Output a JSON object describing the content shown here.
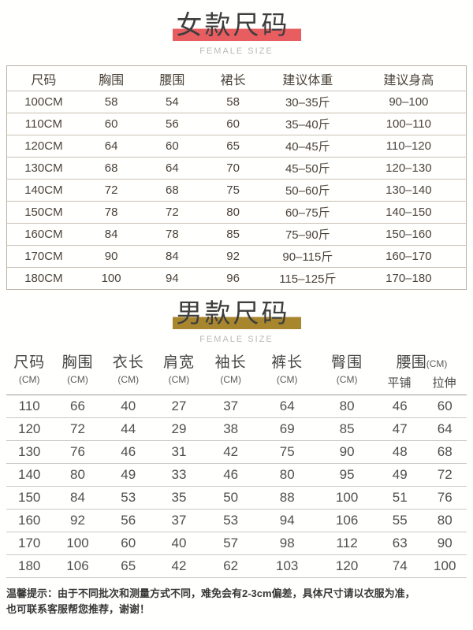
{
  "colors": {
    "female_accent": "#e75d60",
    "male_accent": "#a8862e",
    "title_text": "#3e3e3e",
    "subtitle_text": "#b9b9b9",
    "female_table_text": "#4a4238",
    "female_table_border": "#b8b0a0",
    "male_table_text": "#4f4f4f",
    "male_table_line": "#c9c9c9",
    "note_text": "#383838"
  },
  "female": {
    "title": "女款尺码",
    "subtitle": "FEMALE SIZE",
    "headers": [
      "尺码",
      "胸围",
      "腰围",
      "裙长",
      "建议体重",
      "建议身高"
    ],
    "rows": [
      [
        "100CM",
        "58",
        "54",
        "58",
        "30–35斤",
        "90–100"
      ],
      [
        "110CM",
        "60",
        "56",
        "60",
        "35–40斤",
        "100–110"
      ],
      [
        "120CM",
        "64",
        "60",
        "65",
        "40–45斤",
        "110–120"
      ],
      [
        "130CM",
        "68",
        "64",
        "70",
        "45–50斤",
        "120–130"
      ],
      [
        "140CM",
        "72",
        "68",
        "75",
        "50–60斤",
        "130–140"
      ],
      [
        "150CM",
        "78",
        "72",
        "80",
        "60–75斤",
        "140–150"
      ],
      [
        "160CM",
        "84",
        "78",
        "85",
        "75–90斤",
        "150–160"
      ],
      [
        "170CM",
        "90",
        "84",
        "92",
        "90–115斤",
        "160–170"
      ],
      [
        "180CM",
        "100",
        "94",
        "96",
        "115–125斤",
        "170–180"
      ]
    ]
  },
  "male": {
    "title": "男款尺码",
    "subtitle": "FEMALE SIZE",
    "headers": [
      {
        "label": "尺码",
        "unit": "(CM)"
      },
      {
        "label": "胸围",
        "unit": "(CM)"
      },
      {
        "label": "衣长",
        "unit": "(CM)"
      },
      {
        "label": "肩宽",
        "unit": "(CM)"
      },
      {
        "label": "袖长",
        "unit": "(CM)"
      },
      {
        "label": "裤长",
        "unit": "(CM)"
      },
      {
        "label": "臀围",
        "unit": "(CM)"
      }
    ],
    "waist": {
      "label": "腰围",
      "unit": "(CM)",
      "sub": [
        "平铺",
        "拉伸"
      ]
    },
    "rows": [
      [
        "110",
        "66",
        "40",
        "27",
        "37",
        "64",
        "80",
        "46",
        "60"
      ],
      [
        "120",
        "72",
        "44",
        "29",
        "38",
        "69",
        "85",
        "47",
        "64"
      ],
      [
        "130",
        "76",
        "46",
        "31",
        "42",
        "75",
        "90",
        "48",
        "68"
      ],
      [
        "140",
        "80",
        "49",
        "33",
        "46",
        "80",
        "95",
        "49",
        "72"
      ],
      [
        "150",
        "84",
        "53",
        "35",
        "50",
        "88",
        "100",
        "51",
        "76"
      ],
      [
        "160",
        "92",
        "56",
        "37",
        "53",
        "94",
        "106",
        "55",
        "80"
      ],
      [
        "170",
        "100",
        "60",
        "40",
        "57",
        "98",
        "112",
        "63",
        "90"
      ],
      [
        "180",
        "106",
        "65",
        "42",
        "62",
        "103",
        "120",
        "74",
        "100"
      ]
    ]
  },
  "note": {
    "line1": "温馨提示：由于不同批次和测量方式不同，难免会有2-3cm偏差，具体尺寸请以衣服为准，",
    "line2": "也可联系客服帮您推荐，谢谢！"
  }
}
